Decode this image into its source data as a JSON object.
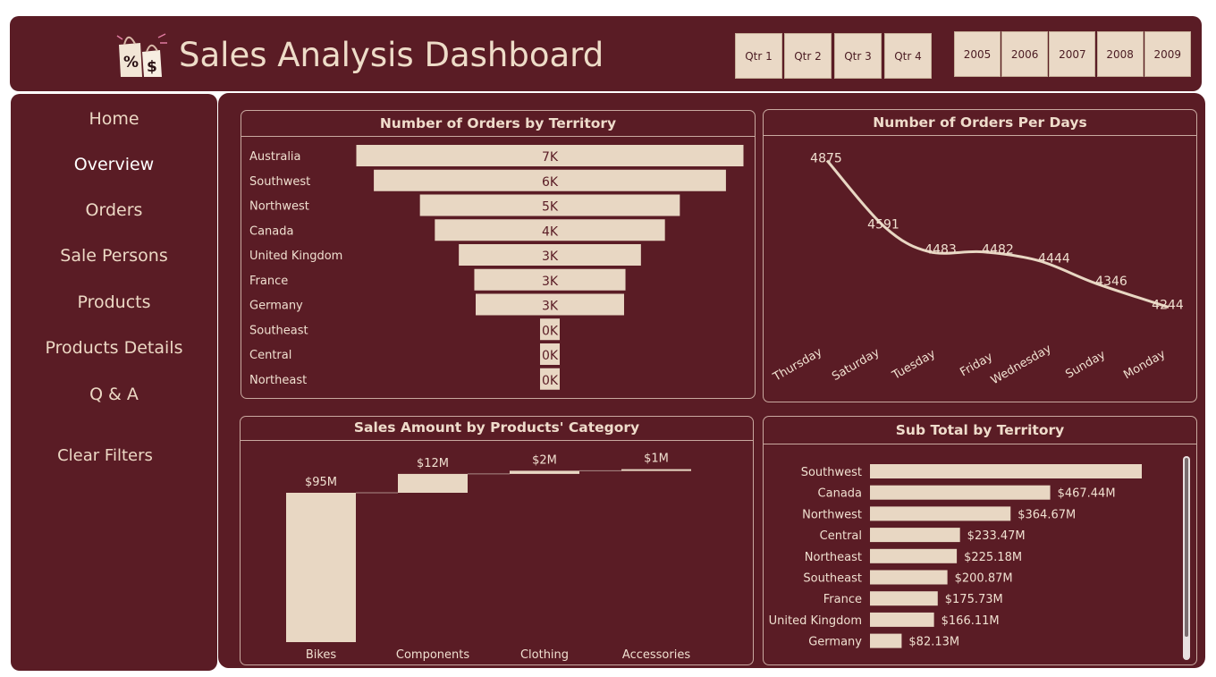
{
  "header": {
    "title": "Sales Analysis Dashboard",
    "logo_icon": "shopping-bags-icon",
    "logo_symbols": [
      "%",
      "$"
    ],
    "quarters": [
      "Qtr 1",
      "Qtr 2",
      "Qtr 3",
      "Qtr 4"
    ],
    "years": [
      "2005",
      "2006",
      "2007",
      "2008",
      "2009"
    ]
  },
  "sidebar": {
    "items": [
      {
        "label": "Home"
      },
      {
        "label": "Overview"
      },
      {
        "label": "Orders"
      },
      {
        "label": "Sale Persons"
      },
      {
        "label": "Products"
      },
      {
        "label": "Products Details"
      },
      {
        "label": "Q & A"
      }
    ],
    "clear_filters": "Clear Filters"
  },
  "colors": {
    "background": "#5a1c25",
    "bar": "#e8d7c3",
    "text": "#f0e0d0",
    "bar_text": "#5a1c25"
  },
  "chart_data": [
    {
      "type": "bar",
      "orientation": "horizontal-funnel",
      "title": "Number of Orders by Territory",
      "categories": [
        "Australia",
        "Southwest",
        "Northwest",
        "Canada",
        "United Kingdom",
        "France",
        "Germany",
        "Southeast",
        "Central",
        "Northeast"
      ],
      "values": [
        6843,
        6224,
        4594,
        4067,
        3219,
        2672,
        2623,
        39,
        19,
        17
      ],
      "data_labels": [
        "7K",
        "6K",
        "5K",
        "4K",
        "3K",
        "3K",
        "3K",
        "0K",
        "0K",
        "0K"
      ]
    },
    {
      "type": "line",
      "title": "Number of Orders Per Days",
      "categories": [
        "Thursday",
        "Saturday",
        "Tuesday",
        "Friday",
        "Wednesday",
        "Sunday",
        "Monday"
      ],
      "values": [
        4875,
        4591,
        4483,
        4482,
        4444,
        4346,
        4244
      ],
      "data_labels": [
        "4875",
        "4591",
        "4483",
        "4482",
        "4444",
        "4346",
        "4244"
      ]
    },
    {
      "type": "bar",
      "orientation": "waterfall",
      "title": "Sales Amount by Products' Category",
      "categories": [
        "Bikes",
        "Components",
        "Clothing",
        "Accessories"
      ],
      "values": [
        95,
        12,
        2,
        1
      ],
      "data_labels": [
        "$95M",
        "$12M",
        "$2M",
        "$1M"
      ]
    },
    {
      "type": "bar",
      "orientation": "horizontal",
      "title": "Sub Total by Territory",
      "categories": [
        "Southwest",
        "Canada",
        "Northwest",
        "Central",
        "Northeast",
        "Southeast",
        "France",
        "United Kingdom",
        "Germany"
      ],
      "values": [
        705,
        467.44,
        364.67,
        233.47,
        225.18,
        200.87,
        175.73,
        166.11,
        82.13
      ],
      "data_labels": [
        "",
        "$467.44M",
        "$364.67M",
        "$233.47M",
        "$225.18M",
        "$200.87M",
        "$175.73M",
        "$166.11M",
        "$82.13M"
      ]
    }
  ]
}
